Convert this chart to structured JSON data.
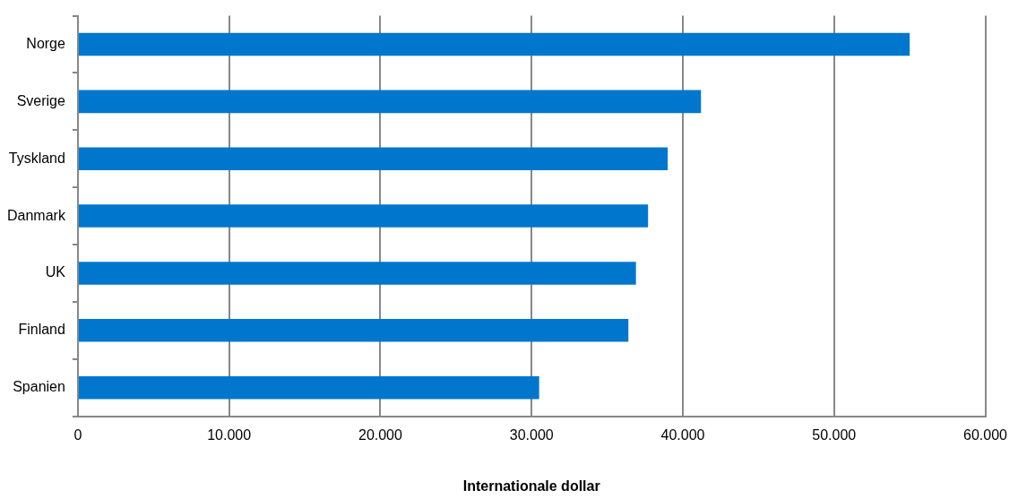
{
  "chart_data": {
    "type": "bar",
    "orientation": "horizontal",
    "xlabel": "Internationale dollar",
    "categories": [
      "Norge",
      "Sverige",
      "Tyskland",
      "Danmark",
      "UK",
      "Finland",
      "Spanien"
    ],
    "values": [
      55000,
      41200,
      39000,
      37700,
      36900,
      36400,
      30500
    ],
    "color": "#0077cc",
    "xlim": [
      0,
      60000
    ],
    "xticks": [
      0,
      {
        "value": 10000,
        "label": "10.000"
      },
      {
        "value": 20000,
        "label": "20.000"
      },
      {
        "value": 30000,
        "label": "30.000"
      },
      {
        "value": 40000,
        "label": "40.000"
      },
      {
        "value": 50000,
        "label": "50.000"
      },
      {
        "value": 60000,
        "label": "60.000"
      }
    ],
    "grid": "x",
    "legend": false
  }
}
